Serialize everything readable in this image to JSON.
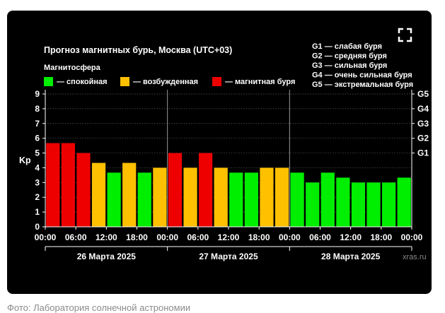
{
  "caption": "Фото: Лаборатория солнечной астрономии",
  "watermark": "xras.ru",
  "fullscreen_icon": "fullscreen-icon",
  "colors": {
    "quiet": "#00ee00",
    "active": "#ffc000",
    "storm": "#ee0000",
    "background": "#000000"
  },
  "chart_data": {
    "type": "bar",
    "title": "Прогноз магнитных бурь, Москва (UTC+03)",
    "legend_title": "Магнитосфера",
    "legend": [
      {
        "label": "— спокойная",
        "color": "#00ee00"
      },
      {
        "label": "— возбужденная",
        "color": "#ffc000"
      },
      {
        "label": "— магнитная буря",
        "color": "#ee0000"
      }
    ],
    "g_scale": [
      "G1 — слабая буря",
      "G2 — средняя буря",
      "G3 — сильная буря",
      "G4 — очень сильная буря",
      "G5 — экстремальная буря"
    ],
    "ylabel": "Kp",
    "ylim": [
      0,
      9
    ],
    "y_ticks": [
      "0",
      "1",
      "2",
      "3",
      "4",
      "5",
      "6",
      "7",
      "8",
      "9"
    ],
    "right_ticks": [
      {
        "label": "G1",
        "y": 5
      },
      {
        "label": "G2",
        "y": 6
      },
      {
        "label": "G3",
        "y": 7
      },
      {
        "label": "G4",
        "y": 8
      },
      {
        "label": "G5",
        "y": 9
      }
    ],
    "x_tick_labels": [
      "00:00",
      "06:00",
      "12:00",
      "18:00",
      "00:00",
      "06:00",
      "12:00",
      "18:00",
      "00:00",
      "06:00",
      "12:00",
      "18:00",
      "00:00"
    ],
    "days": [
      "26 Марта 2025",
      "27 Марта 2025",
      "28 Марта 2025"
    ],
    "grid": true,
    "values": [
      5.67,
      5.67,
      5.0,
      4.33,
      3.67,
      4.33,
      3.67,
      4.0,
      5.0,
      4.0,
      5.0,
      4.0,
      3.67,
      3.67,
      4.0,
      4.0,
      3.67,
      3.0,
      3.67,
      3.33,
      3.0,
      3.0,
      3.0,
      3.33
    ],
    "levels": [
      "storm",
      "storm",
      "storm",
      "active",
      "quiet",
      "active",
      "quiet",
      "active",
      "storm",
      "active",
      "storm",
      "active",
      "quiet",
      "quiet",
      "active",
      "active",
      "quiet",
      "quiet",
      "quiet",
      "quiet",
      "quiet",
      "quiet",
      "quiet",
      "quiet"
    ]
  }
}
